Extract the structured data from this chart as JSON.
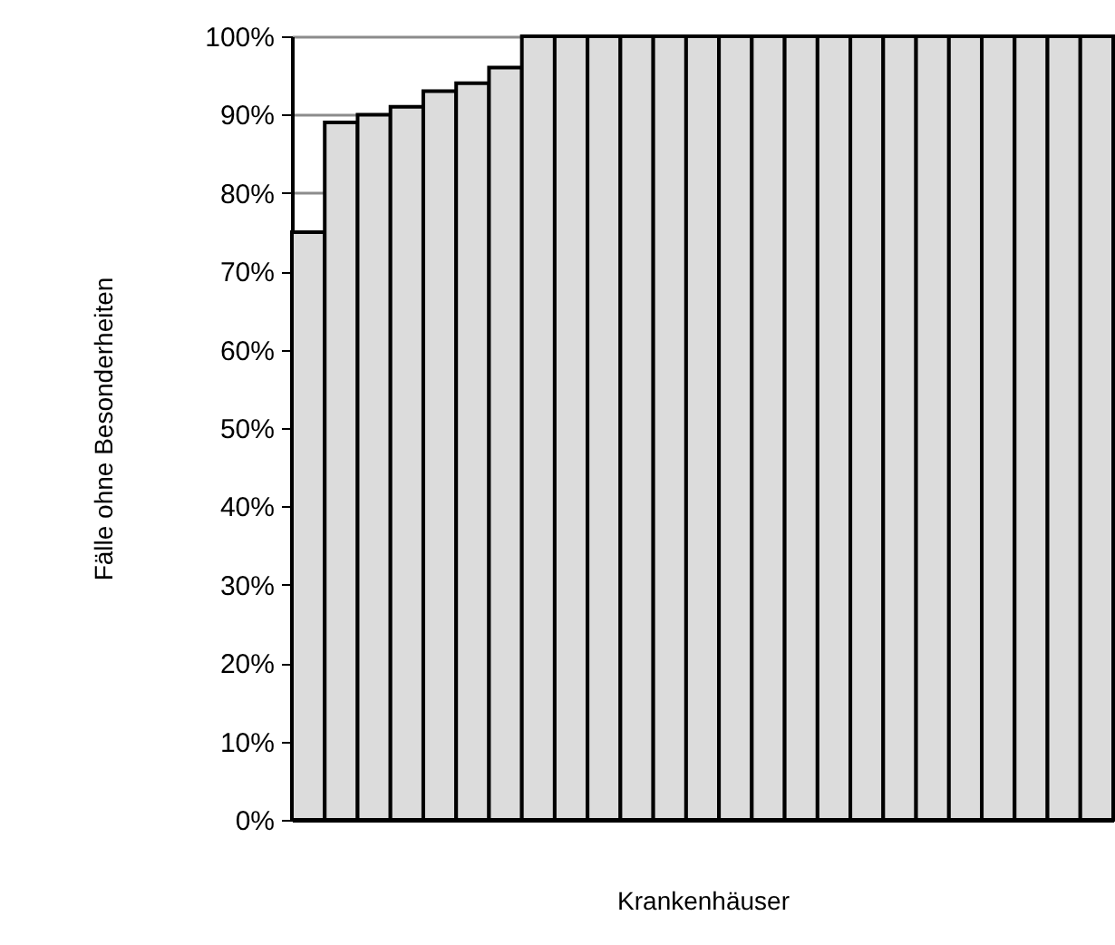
{
  "chart_data": {
    "type": "bar",
    "xlabel": "Krankenhäuser",
    "ylabel": "Fälle ohne Besonderheiten",
    "categories": [
      null,
      null,
      null,
      null,
      null,
      null,
      null,
      null,
      null,
      null,
      null,
      null,
      null,
      null,
      null,
      null,
      null,
      null,
      null,
      null,
      null,
      null,
      null,
      null,
      null
    ],
    "values": [
      75,
      89,
      90,
      91,
      93,
      94,
      96,
      100,
      100,
      100,
      100,
      100,
      100,
      100,
      100,
      100,
      100,
      100,
      100,
      100,
      100,
      100,
      100,
      100,
      100
    ],
    "color": "#dcdcdc",
    "ylim": [
      0,
      100
    ],
    "yticks": [
      {
        "value": 0,
        "label": "0%"
      },
      {
        "value": 10,
        "label": "10%"
      },
      {
        "value": 20,
        "label": "20%"
      },
      {
        "value": 30,
        "label": "30%"
      },
      {
        "value": 40,
        "label": "40%"
      },
      {
        "value": 50,
        "label": "50%"
      },
      {
        "value": 60,
        "label": "60%"
      },
      {
        "value": 70,
        "label": "70%"
      },
      {
        "value": 80,
        "label": "80%"
      },
      {
        "value": 90,
        "label": "90%"
      },
      {
        "value": 100,
        "label": "100%"
      }
    ],
    "grid": "y"
  }
}
